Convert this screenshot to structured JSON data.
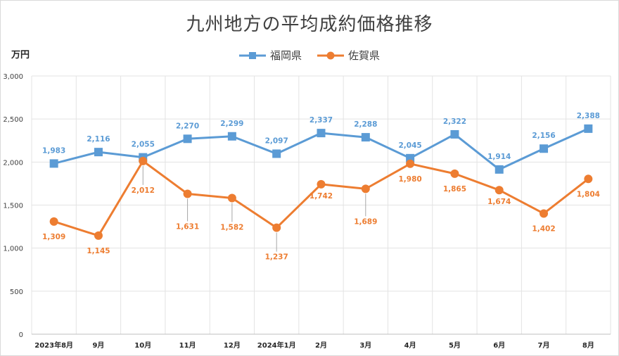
{
  "chart_data": {
    "type": "line",
    "title": "九州地方の平均成約価格推移",
    "ylabel": "万円",
    "xlabel": "",
    "ylim": [
      0,
      3000
    ],
    "yticks": [
      0,
      500,
      1000,
      1500,
      2000,
      2500,
      3000
    ],
    "ytick_labels": [
      "0",
      "500",
      "1,000",
      "1,500",
      "2,000",
      "2,500",
      "3,000"
    ],
    "grid": true,
    "legend_position": "top",
    "categories": [
      "2023年8月",
      "9月",
      "10月",
      "11月",
      "12月",
      "2024年1月",
      "2月",
      "3月",
      "4月",
      "5月",
      "6月",
      "7月",
      "8月"
    ],
    "series": [
      {
        "name": "福岡県",
        "color": "#5b9bd5",
        "marker": "square",
        "values": [
          1983,
          2116,
          2055,
          2270,
          2299,
          2097,
          2337,
          2288,
          2045,
          2322,
          1914,
          2156,
          2388
        ],
        "labels": [
          "1,983",
          "2,116",
          "2,055",
          "2,270",
          "2,299",
          "2,097",
          "2,337",
          "2,288",
          "2,045",
          "2,322",
          "1,914",
          "2,156",
          "2,388"
        ]
      },
      {
        "name": "佐賀県",
        "color": "#ed7d31",
        "marker": "circle",
        "values": [
          1309,
          1145,
          2012,
          1631,
          1582,
          1237,
          1742,
          1689,
          1980,
          1865,
          1674,
          1402,
          1804
        ],
        "labels": [
          "1,309",
          "1,145",
          "2,012",
          "1,631",
          "1,582",
          "1,237",
          "1,742",
          "1,689",
          "1,980",
          "1,865",
          "1,674",
          "1,402",
          "1,804"
        ]
      }
    ]
  }
}
